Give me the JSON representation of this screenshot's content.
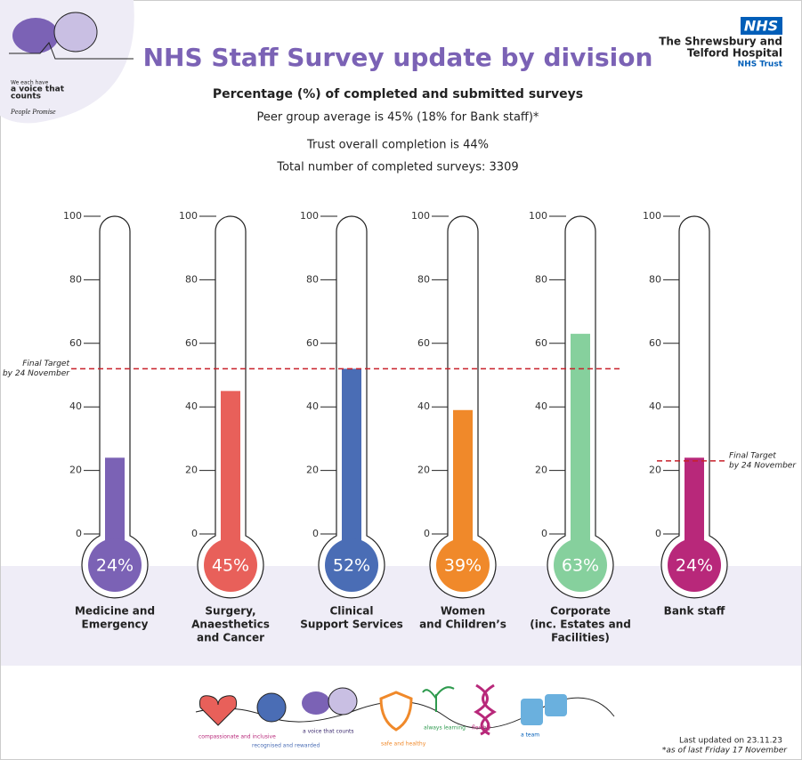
{
  "header": {
    "logo_lines": [
      "We each have",
      "a voice that",
      "counts"
    ],
    "logo_sub": "People Promise",
    "nhs": "NHS",
    "trust_lines": [
      "The Shrewsbury and",
      "Telford Hospital",
      "NHS Trust"
    ]
  },
  "chart_data": {
    "type": "thermometer",
    "title": "NHS Staff Survey update by division",
    "subtitle": "Percentage (%) of completed and submitted surveys",
    "notes": [
      "Peer group average is 45% (18% for Bank staff)*",
      "Trust overall completion is 44%",
      "Total number of completed surveys: 3309"
    ],
    "categories": [
      [
        "Medicine and",
        "Emergency"
      ],
      [
        "Surgery,",
        "Anaesthetics",
        "and Cancer"
      ],
      [
        "Clinical",
        "Support Services"
      ],
      [
        "Women",
        "and Children’s"
      ],
      [
        "Corporate",
        "(inc. Estates and",
        "Facilities)"
      ],
      [
        "Bank staff"
      ]
    ],
    "values": [
      24,
      45,
      52,
      39,
      63,
      24
    ],
    "value_labels": [
      "24%",
      "45%",
      "52%",
      "39%",
      "63%",
      "24%"
    ],
    "colors": [
      "#7b62b5",
      "#e8605a",
      "#4a6db5",
      "#f0892a",
      "#86d09d",
      "#b8287a"
    ],
    "ylim": [
      0,
      100
    ],
    "yticks": [
      0,
      20,
      40,
      60,
      80,
      100
    ],
    "targets": [
      {
        "value": 52,
        "label": [
          "Final Target",
          "by 24 November"
        ]
      },
      {
        "value": 23,
        "label": [
          "Final Target",
          "by 24 November"
        ]
      }
    ]
  },
  "footer": {
    "values": [
      "compassionate and inclusive",
      "recognised and rewarded",
      "a voice that counts",
      "safe and healthy",
      "always learning",
      "flexibly",
      "a team"
    ],
    "updated": "Last updated on 23.11.23",
    "asof": "*as of last Friday 17 November"
  }
}
